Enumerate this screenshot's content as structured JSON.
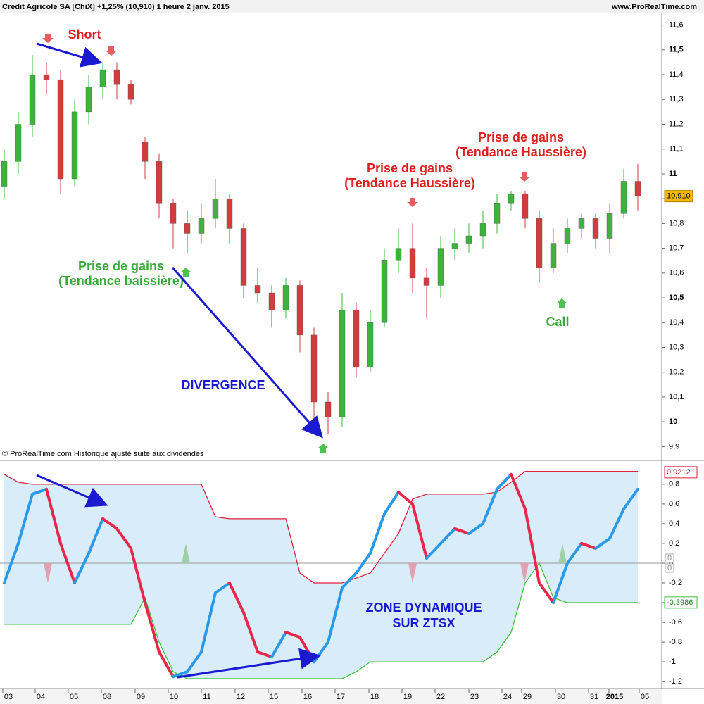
{
  "header": {
    "title": "Credit Agricole SA [ChiX]   +1,25% (10,910)   1 heure   2 janv. 2015",
    "source": "www.ProRealTime.com"
  },
  "chart_data": [
    {
      "type": "candlestick",
      "note": "© ProRealTime.com  Historique ajusté suite aux dividendes",
      "up_color": "#3cb43c",
      "down_color": "#d23c3c",
      "open": [
        10.95,
        11.05,
        11.2,
        11.4,
        11.38,
        10.98,
        11.25,
        11.35,
        11.42,
        11.36,
        11.13,
        11.05,
        10.88,
        10.8,
        10.76,
        10.82,
        10.9,
        10.78,
        10.55,
        10.52,
        10.45,
        10.55,
        10.35,
        10.08,
        10.02,
        10.45,
        10.22,
        10.4,
        10.65,
        10.7,
        10.58,
        10.55,
        10.7,
        10.72,
        10.75,
        10.8,
        10.88,
        10.92,
        10.82,
        10.62,
        10.72,
        10.78,
        10.82,
        10.74,
        10.84,
        10.97
      ],
      "high": [
        11.1,
        11.25,
        11.48,
        11.45,
        11.42,
        11.3,
        11.4,
        11.45,
        11.45,
        11.38,
        11.15,
        11.08,
        10.9,
        10.85,
        10.88,
        10.98,
        10.92,
        10.8,
        10.62,
        10.55,
        10.58,
        10.57,
        10.38,
        10.12,
        10.52,
        10.48,
        10.45,
        10.7,
        10.78,
        10.8,
        10.62,
        10.75,
        10.78,
        10.8,
        10.85,
        10.92,
        10.93,
        10.93,
        10.85,
        10.78,
        10.82,
        10.84,
        10.84,
        10.88,
        11.02,
        11.04
      ],
      "low": [
        10.9,
        11.0,
        11.15,
        11.32,
        10.92,
        10.95,
        11.2,
        11.3,
        11.3,
        11.28,
        10.98,
        10.82,
        10.7,
        10.68,
        10.72,
        10.78,
        10.72,
        10.5,
        10.48,
        10.38,
        10.42,
        10.28,
        10.0,
        9.95,
        9.98,
        10.18,
        10.2,
        10.38,
        10.6,
        10.52,
        10.42,
        10.5,
        10.65,
        10.68,
        10.7,
        10.76,
        10.85,
        10.78,
        10.56,
        10.6,
        10.68,
        10.74,
        10.7,
        10.68,
        10.82,
        10.85
      ],
      "close": [
        11.05,
        11.2,
        11.4,
        11.38,
        10.98,
        11.25,
        11.35,
        11.42,
        11.36,
        11.3,
        11.05,
        10.88,
        10.8,
        10.76,
        10.82,
        10.9,
        10.78,
        10.55,
        10.52,
        10.45,
        10.55,
        10.35,
        10.08,
        10.02,
        10.45,
        10.22,
        10.4,
        10.65,
        10.7,
        10.58,
        10.55,
        10.7,
        10.72,
        10.75,
        10.8,
        10.88,
        10.92,
        10.82,
        10.62,
        10.72,
        10.78,
        10.82,
        10.74,
        10.84,
        10.97,
        10.91
      ],
      "last_price": {
        "value": 10.91,
        "label": "10,910"
      },
      "ylim": [
        9.85,
        11.65
      ],
      "yticks": [
        {
          "value": 9.9,
          "label": "9,9"
        },
        10,
        {
          "value": 10.1,
          "label": "10,1"
        },
        {
          "value": 10.2,
          "label": "10,2"
        },
        {
          "value": 10.3,
          "label": "10,3"
        },
        {
          "value": 10.4,
          "label": "10,4"
        },
        {
          "value": 10.5,
          "label": "10,5"
        },
        {
          "value": 10.6,
          "label": "10,6"
        },
        {
          "value": 10.7,
          "label": "10,7"
        },
        {
          "value": 10.8,
          "label": "10,8"
        },
        {
          "value": 10.9,
          "label": "10,9"
        },
        11,
        {
          "value": 11.1,
          "label": "11,1"
        },
        {
          "value": 11.2,
          "label": "11,2"
        },
        {
          "value": 11.3,
          "label": "11,3"
        },
        {
          "value": 11.4,
          "label": "11,4"
        },
        {
          "value": 11.5,
          "label": "11,5"
        },
        {
          "value": 11.6,
          "label": "11,6"
        }
      ],
      "annotations": [
        {
          "lines": [
            "Short"
          ],
          "color": "#e02020"
        },
        {
          "lines": [
            "Prise de gains",
            "(Tendance baissière)"
          ],
          "color": "#3aa83a"
        },
        {
          "lines": [
            "DIVERGENCE"
          ],
          "color": "#1a1ad0"
        },
        {
          "lines": [
            "Prise de gains",
            "(Tendance Haussière)"
          ],
          "color": "#e02020"
        },
        {
          "lines": [
            "Prise de gains",
            "(Tendance Haussière)"
          ],
          "color": "#e02020"
        },
        {
          "lines": [
            "Call"
          ],
          "color": "#3aa83a"
        }
      ]
    },
    {
      "type": "line",
      "up_color": "#2a9ae8",
      "down_color": "#e8284a",
      "series": [
        {
          "name": "ZTSX",
          "values": [
            -0.2,
            0.2,
            0.7,
            0.75,
            0.2,
            -0.2,
            0.1,
            0.45,
            0.35,
            0.15,
            -0.4,
            -0.9,
            -1.15,
            -1.1,
            -0.9,
            -0.3,
            -0.2,
            -0.5,
            -0.9,
            -0.95,
            -0.7,
            -0.75,
            -1.0,
            -0.8,
            -0.25,
            -0.1,
            0.1,
            0.5,
            0.72,
            0.6,
            0.05,
            0.2,
            0.35,
            0.3,
            0.4,
            0.75,
            0.9,
            0.55,
            -0.2,
            -0.4,
            0.0,
            0.2,
            0.15,
            0.25,
            0.55,
            0.75
          ]
        },
        {
          "name": "Upper",
          "color": "#e0203a",
          "values": [
            0.9,
            0.82,
            0.8,
            0.8,
            0.8,
            0.8,
            0.8,
            0.8,
            0.8,
            0.8,
            0.8,
            0.8,
            0.8,
            0.8,
            0.8,
            0.47,
            0.45,
            0.45,
            0.45,
            0.45,
            0.45,
            -0.1,
            -0.2,
            -0.2,
            -0.2,
            -0.15,
            -0.1,
            0.1,
            0.3,
            0.65,
            0.7,
            0.7,
            0.7,
            0.7,
            0.7,
            0.72,
            0.82,
            0.93,
            0.93,
            0.93,
            0.93,
            0.93,
            0.93,
            0.93,
            0.93,
            0.93
          ],
          "end_label": {
            "value": 0.9212,
            "label": "0,9212"
          }
        },
        {
          "name": "Lower",
          "color": "#3cc03c",
          "values": [
            -0.62,
            -0.62,
            -0.62,
            -0.62,
            -0.62,
            -0.62,
            -0.62,
            -0.62,
            -0.62,
            -0.62,
            -0.35,
            -0.8,
            -1.1,
            -1.17,
            -1.17,
            -1.17,
            -1.17,
            -1.17,
            -1.17,
            -1.17,
            -1.17,
            -1.17,
            -1.17,
            -1.17,
            -1.17,
            -1.1,
            -1.0,
            -1.0,
            -1.0,
            -1.0,
            -1.0,
            -1.0,
            -1.0,
            -1.0,
            -1.0,
            -0.9,
            -0.7,
            -0.2,
            0.0,
            -0.35,
            -0.4,
            -0.4,
            -0.4,
            -0.4,
            -0.4,
            -0.4
          ],
          "end_label": {
            "value": -0.3986,
            "label": "-0,3986"
          }
        }
      ],
      "zero_labels": [
        {
          "value": 0,
          "label": "0"
        },
        {
          "value": 0,
          "label": "0"
        }
      ],
      "annotations": [
        {
          "lines": [
            "ZONE DYNAMIQUE",
            "SUR ZTSX"
          ],
          "color": "#1a1ad0"
        }
      ],
      "ylim": [
        -1.27,
        1.02
      ],
      "yticks": [
        {
          "value": -1.2,
          "label": "-1,2"
        },
        -1,
        {
          "value": -0.8,
          "label": "-0,8"
        },
        {
          "value": -0.6,
          "label": "-0,6"
        },
        {
          "value": -0.4,
          "label": "-0,4"
        },
        {
          "value": -0.2,
          "label": "-0,2"
        },
        0,
        {
          "value": 0.2,
          "label": "0,2"
        },
        {
          "value": 0.4,
          "label": "0,4"
        },
        {
          "value": 0.6,
          "label": "0,6"
        },
        {
          "value": 0.8,
          "label": "0,8"
        }
      ],
      "xlabels": [
        "03",
        "04",
        "05",
        "08",
        "09",
        "10",
        "11",
        "12",
        "15",
        "16",
        "17",
        "18",
        "19",
        "22",
        "23",
        "24",
        "29",
        "30",
        "31",
        "2015",
        "05"
      ]
    }
  ]
}
